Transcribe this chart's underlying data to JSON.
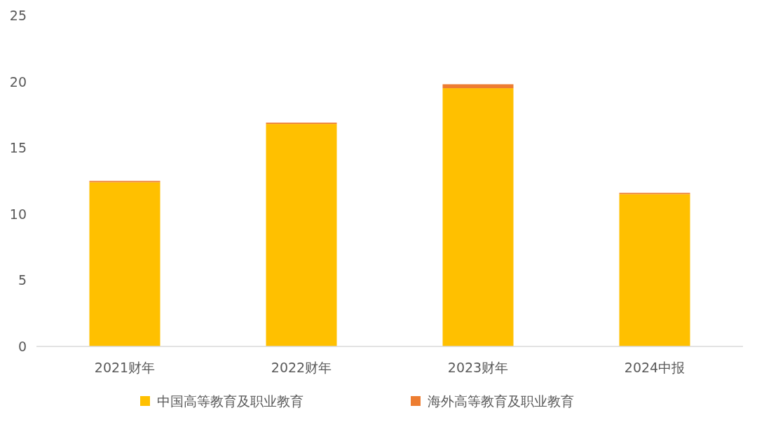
{
  "chart_data": {
    "type": "bar",
    "stacked": true,
    "categories": [
      "2021财年",
      "2022财年",
      "2023财年",
      "2024中报"
    ],
    "series": [
      {
        "name": "中国高等教育及职业教育",
        "color": "#ffc000",
        "values": [
          12.4,
          16.8,
          19.5,
          11.5
        ]
      },
      {
        "name": "海外高等教育及职业教育",
        "color": "#ed7d31",
        "values": [
          0.1,
          0.1,
          0.3,
          0.1
        ]
      }
    ],
    "ylim": [
      0,
      25
    ],
    "yticks": [
      0,
      5,
      10,
      15,
      20,
      25
    ],
    "grid": false,
    "legend": "bottom"
  }
}
